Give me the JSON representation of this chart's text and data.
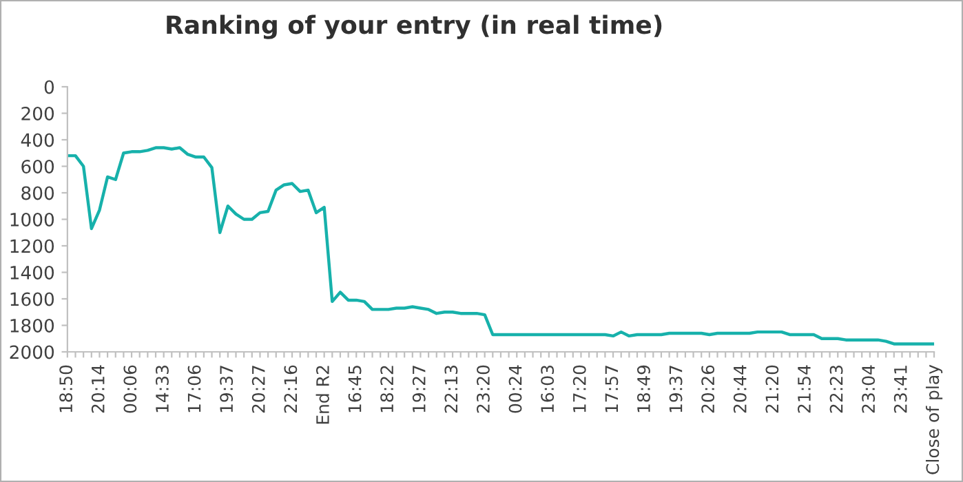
{
  "chart_data": {
    "type": "line",
    "title": "Ranking of your entry (in real time)",
    "categories": [
      "18:50",
      null,
      null,
      null,
      "20:14",
      null,
      null,
      null,
      "00:06",
      null,
      null,
      null,
      "14:33",
      null,
      null,
      null,
      "17:06",
      null,
      null,
      null,
      "19:37",
      null,
      null,
      null,
      "20:27",
      null,
      null,
      null,
      "22:16",
      null,
      null,
      null,
      "End R2",
      null,
      null,
      null,
      "16:45",
      null,
      null,
      null,
      "18:22",
      null,
      null,
      null,
      "19:27",
      null,
      null,
      null,
      "22:13",
      null,
      null,
      null,
      "23:20",
      null,
      null,
      null,
      "00:24",
      null,
      null,
      null,
      "16:03",
      null,
      null,
      null,
      "17:20",
      null,
      null,
      null,
      "17:57",
      null,
      null,
      null,
      "18:49",
      null,
      null,
      null,
      "19:37",
      null,
      null,
      null,
      "20:26",
      null,
      null,
      null,
      "20:44",
      null,
      null,
      null,
      "21:20",
      null,
      null,
      null,
      "21:54",
      null,
      null,
      null,
      "22:23",
      null,
      null,
      null,
      "23:04",
      null,
      null,
      null,
      "23:41",
      null,
      null,
      null,
      "Close of play"
    ],
    "series": [
      {
        "color": "#17b1ab",
        "values": [
          520,
          520,
          600,
          1070,
          930,
          680,
          700,
          500,
          490,
          490,
          480,
          460,
          460,
          470,
          460,
          510,
          530,
          530,
          610,
          1100,
          900,
          960,
          1000,
          1000,
          950,
          940,
          780,
          740,
          730,
          790,
          780,
          950,
          910,
          1620,
          1550,
          1610,
          1610,
          1620,
          1680,
          1680,
          1680,
          1670,
          1670,
          1660,
          1670,
          1680,
          1710,
          1700,
          1700,
          1710,
          1710,
          1710,
          1720,
          1870,
          1870,
          1870,
          1870,
          1870,
          1870,
          1870,
          1870,
          1870,
          1870,
          1870,
          1870,
          1870,
          1870,
          1870,
          1880,
          1850,
          1880,
          1870,
          1870,
          1870,
          1870,
          1860,
          1860,
          1860,
          1860,
          1860,
          1870,
          1860,
          1860,
          1860,
          1860,
          1860,
          1850,
          1850,
          1850,
          1850,
          1870,
          1870,
          1870,
          1870,
          1900,
          1900,
          1900,
          1910,
          1910,
          1910,
          1910,
          1910,
          1920,
          1940,
          1940,
          1940,
          1940,
          1940,
          1940
        ]
      }
    ],
    "ylim": [
      2000,
      0
    ],
    "yticks": [
      0,
      200,
      400,
      600,
      800,
      1000,
      1200,
      1400,
      1600,
      1800,
      2000
    ],
    "grid": false,
    "legend": false,
    "marker": "none",
    "line_style": "solid"
  }
}
